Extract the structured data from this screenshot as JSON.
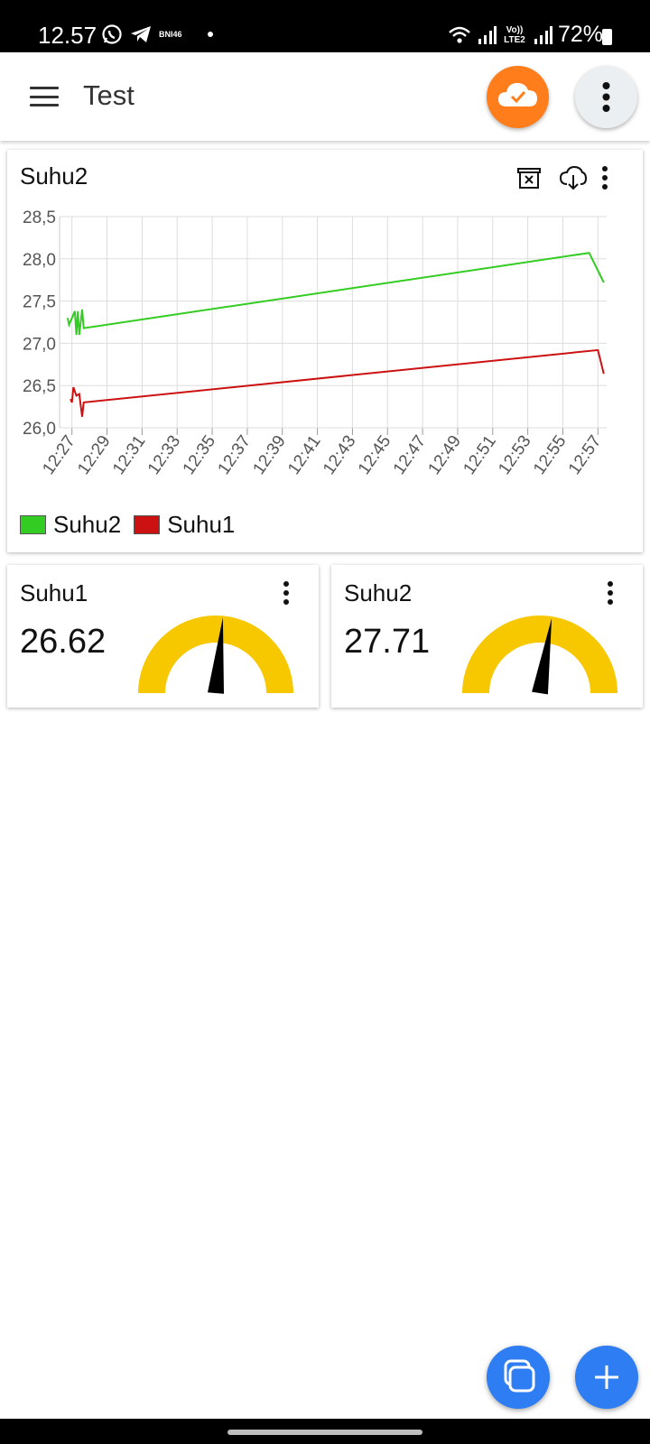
{
  "status_bar": {
    "time": "12.57",
    "carrier": "BNI46",
    "network": "Vo)) LTE2",
    "battery": "72%"
  },
  "app_bar": {
    "title": "Test",
    "icons": [
      "menu-icon",
      "cloud-check-icon",
      "more-vert-icon"
    ],
    "cloud_button_color": "#ff7e1b"
  },
  "chart_widget": {
    "title": "Suhu2",
    "actions": [
      "clear-data-icon",
      "cloud-download-icon",
      "more-vert-icon"
    ]
  },
  "chart_data": {
    "type": "line",
    "x": [
      "12:27",
      "12:29",
      "12:31",
      "12:33",
      "12:35",
      "12:37",
      "12:39",
      "12:41",
      "12:43",
      "12:45",
      "12:47",
      "12:49",
      "12:51",
      "12:53",
      "12:55",
      "12:57"
    ],
    "yticks": [
      "28,5",
      "28,0",
      "27,5",
      "27,0",
      "26,5",
      "26,0"
    ],
    "ylim": [
      26.0,
      28.5
    ],
    "grid": true,
    "legend_position": "bottom-left",
    "series": [
      {
        "name": "Suhu2",
        "color": "#33cc22",
        "points": [
          [
            "12:26:45",
            27.3
          ],
          [
            "12:26:50",
            27.22
          ],
          [
            "12:27:10",
            27.38
          ],
          [
            "12:27:15",
            27.1
          ],
          [
            "12:27:20",
            27.38
          ],
          [
            "12:27:25",
            27.1
          ],
          [
            "12:27:35",
            27.4
          ],
          [
            "12:27:40",
            27.18
          ],
          [
            "12:56:30",
            28.07
          ],
          [
            "12:57:20",
            27.72
          ]
        ]
      },
      {
        "name": "Suhu1",
        "color": "#cc1111",
        "points": [
          [
            "12:26:55",
            26.34
          ],
          [
            "12:27:00",
            26.3
          ],
          [
            "12:27:05",
            26.48
          ],
          [
            "12:27:15",
            26.38
          ],
          [
            "12:27:25",
            26.4
          ],
          [
            "12:27:35",
            26.13
          ],
          [
            "12:27:40",
            26.3
          ],
          [
            "12:57:00",
            26.92
          ],
          [
            "12:57:20",
            26.64
          ]
        ]
      }
    ]
  },
  "gauges": [
    {
      "title": "Suhu1",
      "value": "26.62",
      "level": 0.53,
      "color": "#f7c800"
    },
    {
      "title": "Suhu2",
      "value": "27.71",
      "level": 0.55,
      "color": "#f7c800"
    }
  ],
  "fabs": [
    "copy-icon",
    "add-icon"
  ],
  "fab_color": "#2f7df3"
}
